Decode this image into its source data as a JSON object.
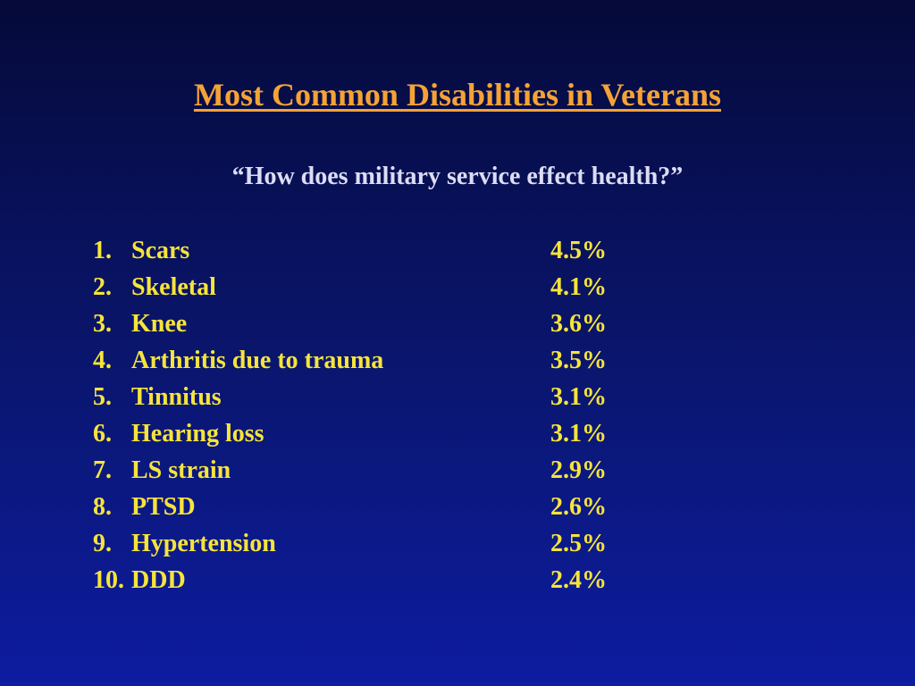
{
  "slide": {
    "title": "Most Common Disabilities in Veterans",
    "subtitle": "“How does military service effect health?”",
    "items": [
      {
        "number": "1.",
        "label": "Scars",
        "percent": "4.5%"
      },
      {
        "number": "2.",
        "label": "Skeletal",
        "percent": "4.1%"
      },
      {
        "number": "3.",
        "label": "Knee",
        "percent": "3.6%"
      },
      {
        "number": "4.",
        "label": "Arthritis due to trauma",
        "percent": "3.5%"
      },
      {
        "number": "5.",
        "label": "Tinnitus",
        "percent": "3.1%"
      },
      {
        "number": "6.",
        "label": "Hearing loss",
        "percent": "3.1%"
      },
      {
        "number": "7.",
        "label": "LS strain",
        "percent": "2.9%"
      },
      {
        "number": "8.",
        "label": "PTSD",
        "percent": "2.6%"
      },
      {
        "number": "9.",
        "label": "Hypertension",
        "percent": "2.5%"
      },
      {
        "number": "10.",
        "label": "DDD",
        "percent": "2.4%"
      }
    ]
  },
  "colors": {
    "title": "#f5a236",
    "subtitle": "#dcdcf5",
    "list_text": "#f6e43a",
    "background_top": "#050a3a",
    "background_bottom": "#0d1ca0"
  }
}
